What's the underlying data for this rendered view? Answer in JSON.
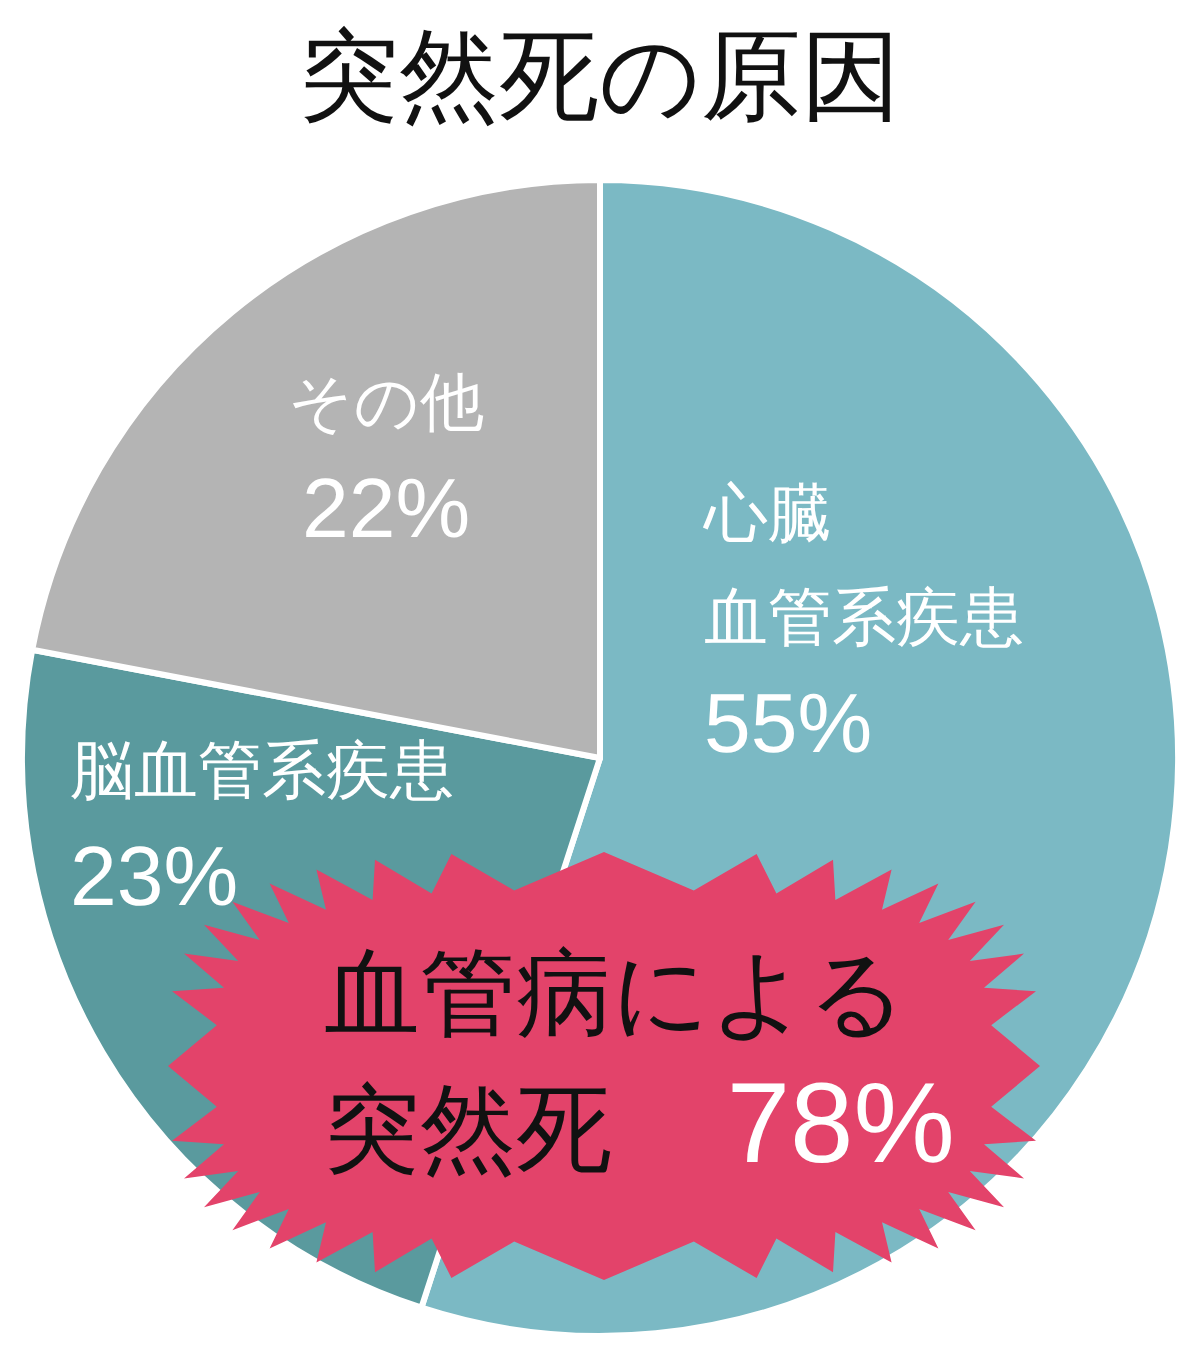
{
  "chart_data": {
    "type": "pie",
    "title": "突然死の原因",
    "categories": [
      "心臓血管系疾患",
      "脳血管系疾患",
      "その他"
    ],
    "values": [
      55,
      23,
      22
    ],
    "colors": [
      "#7bb9c4",
      "#5a9a9e",
      "#b4b4b4"
    ],
    "value_labels": [
      "55%",
      "23%",
      "22%"
    ],
    "annotations": [
      "血管病による突然死 78%"
    ]
  }
}
